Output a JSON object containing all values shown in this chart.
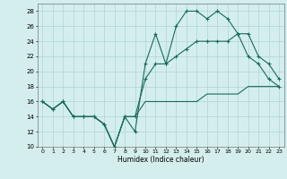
{
  "xlabel": "Humidex (Indice chaleur)",
  "x": [
    0,
    1,
    2,
    3,
    4,
    5,
    6,
    7,
    8,
    9,
    10,
    11,
    12,
    13,
    14,
    15,
    16,
    17,
    18,
    19,
    20,
    21,
    22,
    23
  ],
  "line1": [
    16,
    15,
    16,
    14,
    14,
    14,
    13,
    10,
    14,
    12,
    21,
    25,
    21,
    26,
    28,
    28,
    27,
    28,
    27,
    25,
    22,
    21,
    19,
    18
  ],
  "line2": [
    16,
    15,
    16,
    14,
    14,
    14,
    13,
    10,
    14,
    14,
    19,
    21,
    21,
    22,
    23,
    24,
    24,
    24,
    24,
    25,
    25,
    22,
    21,
    19
  ],
  "line3": [
    16,
    15,
    16,
    14,
    14,
    14,
    13,
    10,
    14,
    14,
    16,
    16,
    16,
    16,
    16,
    16,
    17,
    17,
    17,
    17,
    18,
    18,
    18,
    18
  ],
  "color": "#1a6b5a",
  "bg_color": "#d4eeee",
  "grid_color": "#aed4d4",
  "xlim": [
    -0.5,
    23.5
  ],
  "ylim": [
    10,
    29
  ],
  "yticks": [
    10,
    12,
    14,
    16,
    18,
    20,
    22,
    24,
    26,
    28
  ],
  "xticks": [
    0,
    1,
    2,
    3,
    4,
    5,
    6,
    7,
    8,
    9,
    10,
    11,
    12,
    13,
    14,
    15,
    16,
    17,
    18,
    19,
    20,
    21,
    22,
    23
  ]
}
